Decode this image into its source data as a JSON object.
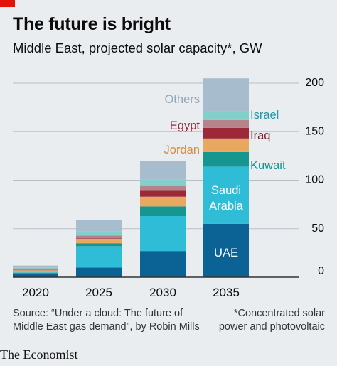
{
  "header": {
    "title": "The future is bright",
    "subtitle": "Middle East, projected solar capacity*, GW"
  },
  "footer": {
    "source": "Source: “Under a cloud: The future of Middle East gas demand”, by Robin Mills",
    "note": "*Concentrated solar power and photovoltaic",
    "brand": "The Economist"
  },
  "colors": {
    "UAE": "#0b6395",
    "Saudi Arabia": "#2fbcd6",
    "Kuwait": "#15968f",
    "Jordan": "#e9a860",
    "Iraq": "#9c2838",
    "Egypt": "#b7838b",
    "Israel": "#83cfc9",
    "Others": "#a7bdcd",
    "gridline": "#b8c0c7",
    "zeroline": "#333333",
    "background": "#e9edf0"
  },
  "chart_data": {
    "type": "bar",
    "stacked": true,
    "categories": [
      "2020",
      "2025",
      "2030",
      "2035"
    ],
    "ylim": [
      0,
      200
    ],
    "yticks": [
      0,
      50,
      100,
      150,
      200
    ],
    "y_axis_side": "right",
    "grid": true,
    "legend": "inline labels on 2035 bar",
    "series": [
      {
        "name": "UAE",
        "values": [
          4,
          10,
          27,
          55
        ]
      },
      {
        "name": "Saudi Arabia",
        "values": [
          1,
          22,
          36,
          59
        ]
      },
      {
        "name": "Kuwait",
        "values": [
          0,
          3,
          10,
          15
        ]
      },
      {
        "name": "Jordan",
        "values": [
          2,
          4,
          10,
          14
        ]
      },
      {
        "name": "Iraq",
        "values": [
          0,
          1,
          6,
          11
        ]
      },
      {
        "name": "Egypt",
        "values": [
          2,
          3,
          5,
          8
        ]
      },
      {
        "name": "Israel",
        "values": [
          1,
          4,
          7,
          9
        ]
      },
      {
        "name": "Others",
        "values": [
          2,
          12,
          19,
          34
        ]
      }
    ]
  }
}
